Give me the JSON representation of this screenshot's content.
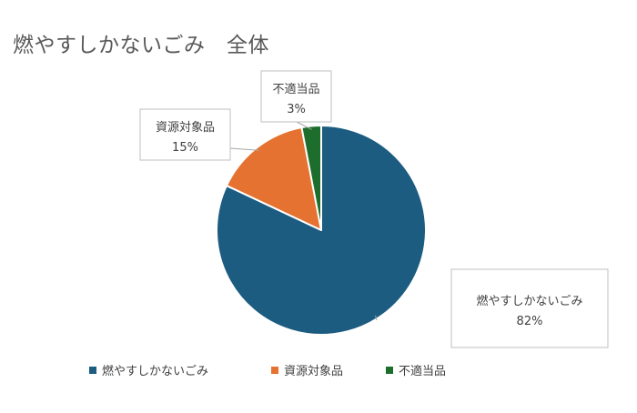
{
  "chart_data": {
    "type": "pie",
    "title": "燃やすしかないごみ　全体",
    "categories": [
      "燃やすしかないごみ",
      "資源対象品",
      "不適当品"
    ],
    "values": [
      82,
      15,
      3
    ],
    "value_labels": [
      "82%",
      "15%",
      "3%"
    ],
    "colors": [
      "#1B5C80",
      "#E57230",
      "#1D6E2C"
    ],
    "legend": "bottom",
    "start_angle_deg": 0,
    "direction": "clockwise"
  }
}
